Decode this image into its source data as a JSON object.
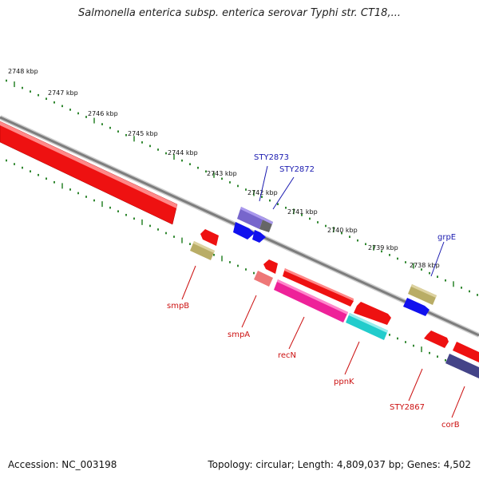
{
  "title": "Salmonella enterica subsp. enterica serovar Typhi str. CT18,...",
  "accession": "Accession: NC_003198",
  "topology": "Topology: circular; Length: 4,809,037 bp; Genes: 4,502",
  "colors": {
    "backbone": "#8a8a8a",
    "tick": "#1a7a1a",
    "gene_label_forward": "#1a1ab0",
    "gene_label_reverse": "#cc1111"
  },
  "scale_labels": [
    "2748 kbp",
    "2747 kbp",
    "2746 kbp",
    "2745 kbp",
    "2744 kbp",
    "2743 kbp",
    "2742 kbp",
    "2741 kbp",
    "2740 kbp",
    "2739 kbp",
    "2738 kbp"
  ],
  "gene_labels": {
    "sty2873": "STY2873",
    "sty2872": "STY2872",
    "grpe": "grpE",
    "smpb": "smpB",
    "smpa": "smpA",
    "recn": "recN",
    "ppnk": "ppnK",
    "sty2867": "STY2867",
    "corb": "corB"
  },
  "features": [
    {
      "name": "large-feature",
      "color": "#ee1111",
      "icon": "rect"
    },
    {
      "name": "sty2873",
      "color": "#7766cc",
      "icon": "rect"
    },
    {
      "name": "sty2872",
      "color": "#666666",
      "icon": "rect"
    },
    {
      "name": "blue-a",
      "color": "#1111ee",
      "icon": "arrow"
    },
    {
      "name": "blue-b",
      "color": "#1111ee",
      "icon": "arrow"
    },
    {
      "name": "grpe",
      "color": "#b9ad66",
      "icon": "rect"
    },
    {
      "name": "blue-grpe",
      "color": "#1111ee",
      "icon": "arrow"
    },
    {
      "name": "smpb-arrow",
      "color": "#ee1111",
      "icon": "arrow"
    },
    {
      "name": "smpb-olive",
      "color": "#b9ad66",
      "icon": "rect"
    },
    {
      "name": "smpa-arrow",
      "color": "#ee1111",
      "icon": "arrow"
    },
    {
      "name": "smpa-pink",
      "color": "#ee7777",
      "icon": "rect"
    },
    {
      "name": "recn",
      "color": "#ee1111",
      "icon": "rect"
    },
    {
      "name": "magenta",
      "color": "#ee2299",
      "icon": "rect"
    },
    {
      "name": "ppnk",
      "color": "#ee1111",
      "icon": "arrow"
    },
    {
      "name": "cyan",
      "color": "#22cccc",
      "icon": "rect"
    },
    {
      "name": "sty2867",
      "color": "#ee1111",
      "icon": "arrow"
    },
    {
      "name": "corb",
      "color": "#ee1111",
      "icon": "rect"
    },
    {
      "name": "navy",
      "color": "#444488",
      "icon": "rect"
    }
  ]
}
